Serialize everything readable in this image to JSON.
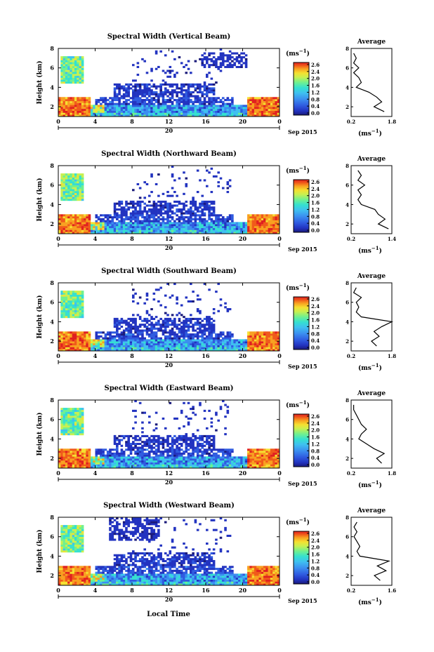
{
  "figure": {
    "xlabel": "Local Time",
    "date_label": "Sep 2015",
    "day_label": "20",
    "colorbar_unit": "(ms",
    "colorbar_unit_sup": "−1",
    "colorbar_unit_close": ")",
    "avg_title": "Average",
    "avg_unit": "(ms",
    "avg_unit_sup": "−1",
    "avg_unit_close": ")"
  },
  "colorbar": {
    "ticks": [
      "2.6",
      "2.4",
      "2.0",
      "1.6",
      "1.2",
      "0.8",
      "0.4",
      "0.0"
    ],
    "colors": [
      "#1a1a7a",
      "#2233c0",
      "#2f5be0",
      "#3b8ef0",
      "#3fc0f0",
      "#35e0d0",
      "#6ff090",
      "#c8f050",
      "#f5e030",
      "#f8a020",
      "#f05a1a",
      "#e02020"
    ]
  },
  "chart_data": [
    {
      "type": "heatmap",
      "title": "Spectral Width (Vertical Beam)",
      "ylabel": "Height (km)",
      "xlim": [
        0,
        24
      ],
      "ylim": [
        1,
        8
      ],
      "xticks": [
        "0",
        "4",
        "8",
        "12",
        "16",
        "20",
        "0"
      ],
      "yticks": [
        "2",
        "4",
        "6",
        "8"
      ],
      "zlim": [
        0.0,
        2.6
      ],
      "avg": {
        "xticks": [
          "0.2",
          "1.8"
        ],
        "xlim": [
          0.2,
          1.8
        ],
        "ylim": [
          1,
          8
        ],
        "height": [
          1.5,
          2.0,
          2.5,
          3.0,
          3.5,
          4.0,
          4.5,
          5.0,
          5.5,
          6.0,
          6.5,
          7.0,
          7.5
        ],
        "width": [
          1.5,
          1.1,
          1.4,
          1.2,
          0.9,
          0.4,
          0.6,
          0.5,
          0.3,
          0.5,
          0.3,
          0.4,
          0.3
        ]
      }
    },
    {
      "type": "heatmap",
      "title": "Spectral Width (Northward Beam)",
      "ylabel": "Height (km)",
      "xlim": [
        0,
        24
      ],
      "ylim": [
        1,
        8
      ],
      "xticks": [
        "0",
        "4",
        "8",
        "12",
        "16",
        "20",
        "0"
      ],
      "yticks": [
        "2",
        "4",
        "6",
        "8"
      ],
      "zlim": [
        0.0,
        2.6
      ],
      "avg": {
        "xticks": [
          "0.2",
          "1.4"
        ],
        "xlim": [
          0.2,
          1.4
        ],
        "ylim": [
          1,
          8
        ],
        "height": [
          1.5,
          2.0,
          2.5,
          3.0,
          3.5,
          4.0,
          4.5,
          5.0,
          5.5,
          6.0,
          6.5,
          7.0,
          7.5
        ],
        "width": [
          1.3,
          1.0,
          1.2,
          1.0,
          0.9,
          0.5,
          0.4,
          0.5,
          0.4,
          0.6,
          0.4,
          0.5,
          0.4
        ]
      }
    },
    {
      "type": "heatmap",
      "title": "Spectral Width (Southward Beam)",
      "ylabel": "Height (km)",
      "xlim": [
        0,
        24
      ],
      "ylim": [
        1,
        8
      ],
      "xticks": [
        "0",
        "4",
        "8",
        "12",
        "16",
        "20",
        "0"
      ],
      "yticks": [
        "2",
        "4",
        "6",
        "8"
      ],
      "zlim": [
        0.0,
        2.6
      ],
      "avg": {
        "xticks": [
          "0.2",
          "1.8"
        ],
        "xlim": [
          0.2,
          1.8
        ],
        "ylim": [
          1,
          8
        ],
        "height": [
          1.5,
          2.0,
          2.5,
          3.0,
          3.5,
          4.0,
          4.5,
          5.0,
          5.5,
          6.0,
          6.5,
          7.0,
          7.5
        ],
        "width": [
          1.2,
          1.0,
          1.3,
          1.1,
          1.4,
          1.8,
          0.6,
          0.4,
          0.5,
          0.4,
          0.6,
          0.3,
          0.4
        ]
      }
    },
    {
      "type": "heatmap",
      "title": "Spectral Width (Eastward Beam)",
      "ylabel": "Height (km)",
      "xlim": [
        0,
        24
      ],
      "ylim": [
        1,
        8
      ],
      "xticks": [
        "0",
        "4",
        "8",
        "12",
        "16",
        "20",
        "0"
      ],
      "yticks": [
        "2",
        "4",
        "6",
        "8"
      ],
      "zlim": [
        0.0,
        2.6
      ],
      "avg": {
        "xticks": [
          "0.2",
          "1.8"
        ],
        "xlim": [
          0.2,
          1.8
        ],
        "ylim": [
          1,
          8
        ],
        "height": [
          1.5,
          2.0,
          2.5,
          3.0,
          3.5,
          4.0,
          4.5,
          5.0,
          5.5,
          6.0,
          6.5,
          7.0,
          7.5
        ],
        "width": [
          1.4,
          1.2,
          1.5,
          1.1,
          0.8,
          0.5,
          0.6,
          0.8,
          0.6,
          0.5,
          0.4,
          0.3,
          0.3
        ]
      }
    },
    {
      "type": "heatmap",
      "title": "Spectral Width (Westward Beam)",
      "ylabel": "Height (km)",
      "xlim": [
        0,
        24
      ],
      "ylim": [
        1,
        8
      ],
      "xticks": [
        "0",
        "4",
        "8",
        "12",
        "16",
        "20",
        "0"
      ],
      "yticks": [
        "2",
        "4",
        "6",
        "8"
      ],
      "zlim": [
        0.0,
        2.6
      ],
      "avg": {
        "xticks": [
          "0.2",
          "1.6"
        ],
        "xlim": [
          0.2,
          1.6
        ],
        "ylim": [
          1,
          8
        ],
        "height": [
          1.5,
          2.0,
          2.5,
          3.0,
          3.5,
          4.0,
          4.5,
          5.0,
          5.5,
          6.0,
          6.5,
          7.0,
          7.5
        ],
        "width": [
          1.2,
          1.0,
          1.4,
          1.1,
          1.5,
          0.5,
          0.4,
          0.5,
          0.4,
          0.3,
          0.4,
          0.3,
          0.4
        ]
      }
    }
  ]
}
